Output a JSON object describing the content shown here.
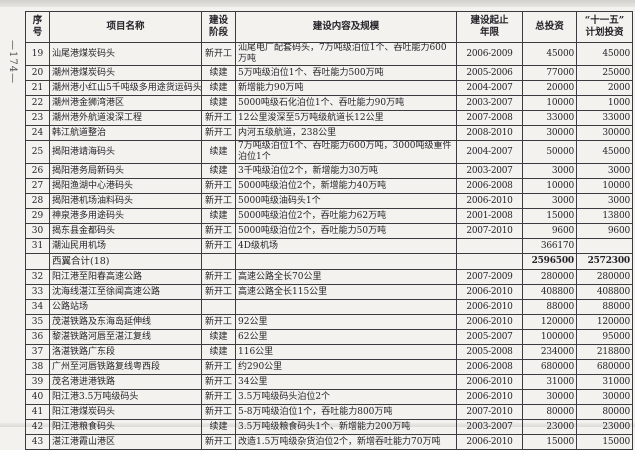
{
  "colors": {
    "paper": "#f3f2ee",
    "ink": "#25242a",
    "line": "#3c3b40"
  },
  "page": {
    "page_number": "—174—"
  },
  "table": {
    "headers": [
      "序\n号",
      "项目名称",
      "建设\n阶段",
      "建设内容及规模",
      "建设起止\n年限",
      "总投资",
      "“十一五”\n计划投资"
    ],
    "rows": [
      {
        "kind": "data",
        "no": "19",
        "name": "汕尾港煤炭码头",
        "stage": "新开工",
        "content": "汕尾电厂配套码头，7万吨级泊位1个、吞吐能力600万吨",
        "years": "2006-2009",
        "total": "45000",
        "plan": "45000"
      },
      {
        "kind": "data",
        "no": "20",
        "name": "潮州港煤炭码头",
        "stage": "续建",
        "content": "5万吨级泊位1个、吞吐能力500万吨",
        "years": "2005-2006",
        "total": "77000",
        "plan": "25000"
      },
      {
        "kind": "data",
        "no": "21",
        "name": "潮州港小红山5千吨级多用途货运码头",
        "stage": "续建",
        "content": "新增能力90万吨",
        "years": "2004-2007",
        "total": "20000",
        "plan": "2000"
      },
      {
        "kind": "data",
        "no": "22",
        "name": "潮州港金狮湾港区",
        "stage": "续建",
        "content": "5000吨级石化泊位1个、吞吐能力90万吨",
        "years": "2003-2007",
        "total": "10000",
        "plan": "1000"
      },
      {
        "kind": "data",
        "no": "23",
        "name": "潮州港外航道浚深工程",
        "stage": "新开工",
        "content": "12公里浚深至5万吨级航道长12公里",
        "years": "2007-2008",
        "total": "33000",
        "plan": "33000"
      },
      {
        "kind": "data",
        "no": "24",
        "name": "韩江航道整治",
        "stage": "新开工",
        "content": "内河五级航道，238公里",
        "years": "2008-2010",
        "total": "30000",
        "plan": "30000"
      },
      {
        "kind": "data",
        "no": "25",
        "name": "揭阳港靖海码头",
        "stage": "续建",
        "content": "7万吨级泊位1个、吞吐能力600万吨，3000吨级重件泊位1个",
        "years": "2004-2007",
        "total": "50000",
        "plan": "45000"
      },
      {
        "kind": "data",
        "no": "26",
        "name": "揭阳港务局新码头",
        "stage": "续建",
        "content": "3千吨级泊位2个，新增能力30万吨",
        "years": "2003-2007",
        "total": "3000",
        "plan": "3000"
      },
      {
        "kind": "data",
        "no": "27",
        "name": "揭阳渔湖中心港码头",
        "stage": "新开工",
        "content": "5000吨级泊位2个，新增能力40万吨",
        "years": "2006-2008",
        "total": "10000",
        "plan": "10000"
      },
      {
        "kind": "data",
        "no": "28",
        "name": "揭阳港机场油料码头",
        "stage": "新开工",
        "content": "5000吨级油码头1个",
        "years": "2006-2010",
        "total": "3000",
        "plan": "3000"
      },
      {
        "kind": "data",
        "no": "29",
        "name": "神泉港多用途码头",
        "stage": "续建",
        "content": "5000吨级泊位2个，吞吐能力62万吨",
        "years": "2001-2008",
        "total": "15000",
        "plan": "13800"
      },
      {
        "kind": "data",
        "no": "30",
        "name": "揭东县金都码头",
        "stage": "新开工",
        "content": "5000吨级泊位2个，吞吐能力50万吨",
        "years": "2007-2010",
        "total": "9600",
        "plan": "9600"
      },
      {
        "kind": "data",
        "no": "31",
        "name": "潮汕民用机场",
        "stage": "新开工",
        "content": "4D级机场",
        "years": "",
        "total": "366170",
        "plan": ""
      },
      {
        "kind": "subtotal",
        "label": "西翼合计(18)",
        "total": "2596500",
        "plan": "2572300"
      },
      {
        "kind": "data",
        "no": "32",
        "name": "阳江港至阳春高速公路",
        "stage": "新开工",
        "content": "高速公路全长70公里",
        "years": "2007-2009",
        "total": "280000",
        "plan": "280000"
      },
      {
        "kind": "data",
        "no": "33",
        "name": "沈海线湛江至徐闻高速公路",
        "stage": "新开工",
        "content": "高速公路全长115公里",
        "years": "2006-2010",
        "total": "408800",
        "plan": "408800"
      },
      {
        "kind": "data",
        "no": "34",
        "name": "公路站场",
        "stage": "",
        "content": "",
        "years": "2006-2010",
        "total": "88000",
        "plan": "88000"
      },
      {
        "kind": "data",
        "no": "35",
        "name": "茂湛铁路及东海岛延伸线",
        "stage": "新开工",
        "content": "92公里",
        "years": "2006-2010",
        "total": "120000",
        "plan": "120000"
      },
      {
        "kind": "data",
        "no": "36",
        "name": "黎湛铁路河唇至湛江复线",
        "stage": "续建",
        "content": "62公里",
        "years": "2005-2007",
        "total": "100000",
        "plan": "95000"
      },
      {
        "kind": "data",
        "no": "37",
        "name": "洛湛铁路广东段",
        "stage": "续建",
        "content": "116公里",
        "years": "2005-2008",
        "total": "234000",
        "plan": "218800"
      },
      {
        "kind": "data",
        "no": "38",
        "name": "广州至河唇铁路复线粤西段",
        "stage": "新开工",
        "content": "约290公里",
        "years": "2006-2008",
        "total": "680000",
        "plan": "680000"
      },
      {
        "kind": "data",
        "no": "39",
        "name": "茂名港进港铁路",
        "stage": "新开工",
        "content": "34公里",
        "years": "2006-2010",
        "total": "31000",
        "plan": "31000"
      },
      {
        "kind": "data",
        "no": "40",
        "name": "阳江港3.5万吨级码头",
        "stage": "新开工",
        "content": "3.5万吨级码头泊位2个",
        "years": "2006-2010",
        "total": "30000",
        "plan": "30000"
      },
      {
        "kind": "data",
        "no": "41",
        "name": "阳江港煤炭码头",
        "stage": "新开工",
        "content": "5-8万吨级泊位1个，吞吐能力800万吨",
        "years": "2007-2010",
        "total": "80000",
        "plan": "80000"
      },
      {
        "kind": "data",
        "no": "42",
        "name": "阳江港粮食码头",
        "stage": "续建",
        "content": "3.5万吨级粮食码头1个、新增能力200万吨",
        "years": "2003-2007",
        "total": "23000",
        "plan": "23000"
      },
      {
        "kind": "data",
        "no": "43",
        "name": "湛江港霞山港区",
        "stage": "新开工",
        "content": "改造1.5万吨级杂货泊位2个，新增吞吐能力70万吨",
        "years": "2006-2010",
        "total": "15000",
        "plan": "15000"
      }
    ]
  }
}
